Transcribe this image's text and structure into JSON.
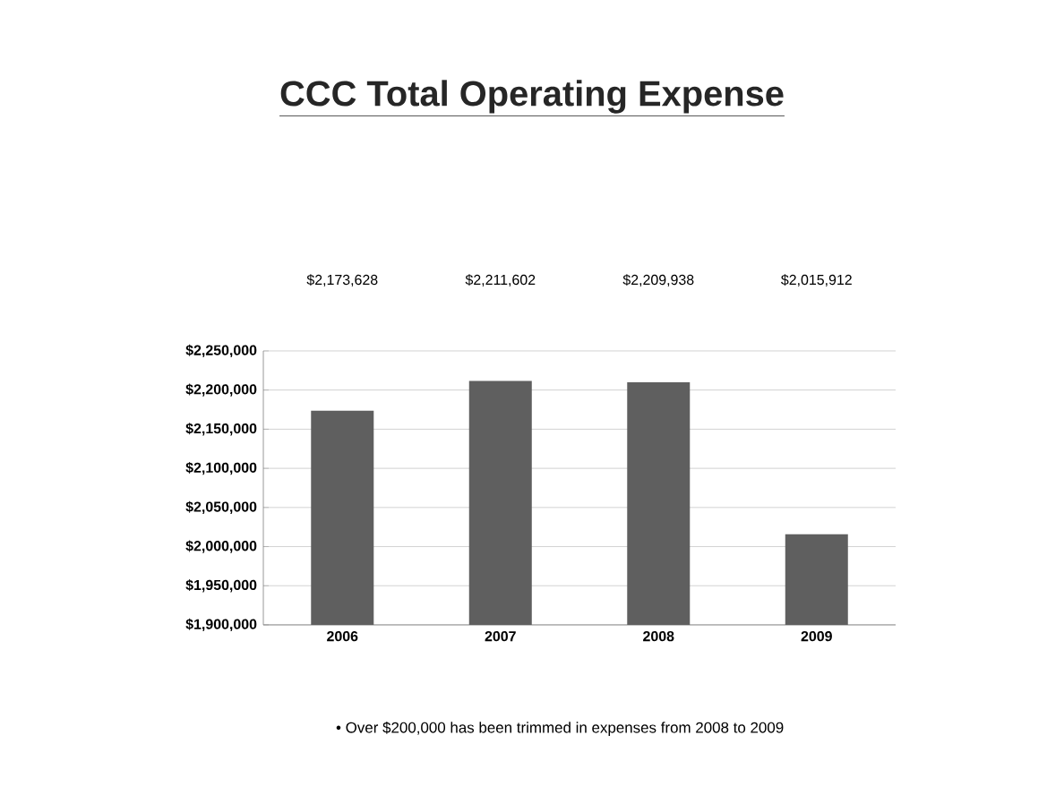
{
  "chart_data": {
    "type": "bar",
    "title": "CCC Total Operating Expense",
    "categories": [
      "2006",
      "2007",
      "2008",
      "2009"
    ],
    "values": [
      2173628,
      2211602,
      2209938,
      2015912
    ],
    "value_labels": [
      "$2,173,628",
      "$2,211,602",
      "$2,209,938",
      "$2,015,912"
    ],
    "color": "#5f5f5f",
    "ylim": [
      1900000,
      2250000
    ],
    "yticks": [
      {
        "value": 1900000,
        "label": "$1,900,000"
      },
      {
        "value": 1950000,
        "label": "$1,950,000"
      },
      {
        "value": 2000000,
        "label": "$2,000,000"
      },
      {
        "value": 2050000,
        "label": "$2,050,000"
      },
      {
        "value": 2100000,
        "label": "$2,100,000"
      },
      {
        "value": 2150000,
        "label": "$2,150,000"
      },
      {
        "value": 2200000,
        "label": "$2,200,000"
      },
      {
        "value": 2250000,
        "label": "$2,250,000"
      }
    ],
    "grid": "y",
    "annotations": [
      "• Over $200,000 has been trimmed in expenses from 2008 to 2009"
    ]
  }
}
